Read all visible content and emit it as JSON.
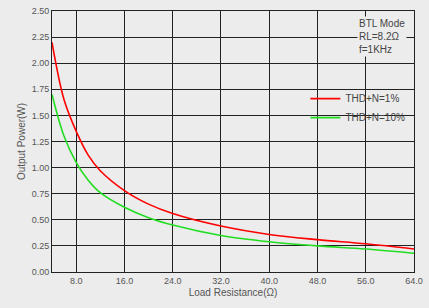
{
  "chart_data": {
    "type": "line",
    "x_label": "Load Resistance(Ω)",
    "y_label": "Output Power(W)",
    "annotations": [
      "BTL Mode",
      "RL=8.2Ω",
      "f=1KHz"
    ],
    "x": [
      4,
      6,
      8,
      10,
      12,
      16,
      20,
      24,
      32,
      40,
      48,
      56,
      64
    ],
    "series": [
      {
        "name": "THD+N=1%",
        "color": "#ff0000",
        "line_style": "solid",
        "values": [
          2.2,
          1.65,
          1.35,
          1.12,
          0.97,
          0.78,
          0.65,
          0.56,
          0.44,
          0.36,
          0.31,
          0.27,
          0.22
        ]
      },
      {
        "name": "THD+N=10%",
        "color": "#22dd22",
        "line_style": "solid",
        "values": [
          1.7,
          1.3,
          1.05,
          0.88,
          0.76,
          0.62,
          0.52,
          0.45,
          0.35,
          0.29,
          0.25,
          0.22,
          0.18
        ]
      }
    ],
    "xlim": [
      4,
      64
    ],
    "xticks": [
      {
        "value": 8,
        "label": "8.0"
      },
      {
        "value": 16,
        "label": "16.0"
      },
      {
        "value": 24,
        "label": "24.0"
      },
      {
        "value": 32,
        "label": "32.0"
      },
      {
        "value": 40,
        "label": "40.0"
      },
      {
        "value": 48,
        "label": "48.0"
      },
      {
        "value": 56,
        "label": "56.0"
      },
      {
        "value": 64,
        "label": "64.0"
      }
    ],
    "ylim": [
      0,
      2.5
    ],
    "yticks": [
      {
        "value": 0,
        "label": "0.00"
      },
      {
        "value": 0.25,
        "label": "0.25"
      },
      {
        "value": 0.5,
        "label": "0.50"
      },
      {
        "value": 0.75,
        "label": "0.75"
      },
      {
        "value": 1,
        "label": "1.00"
      },
      {
        "value": 1.25,
        "label": "1.25"
      },
      {
        "value": 1.5,
        "label": "1.50"
      },
      {
        "value": 1.75,
        "label": "1.75"
      },
      {
        "value": 2,
        "label": "2.00"
      },
      {
        "value": 2.25,
        "label": "2.25"
      },
      {
        "value": 2.5,
        "label": "2.50"
      }
    ],
    "grid": true,
    "legend": "upper right"
  }
}
